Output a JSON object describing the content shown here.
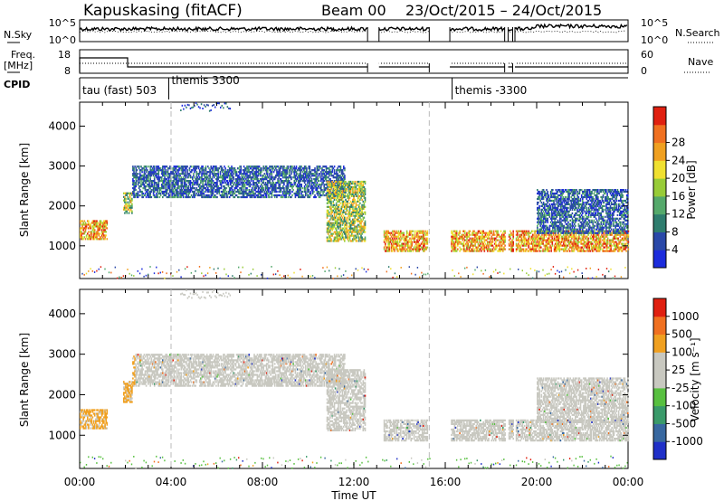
{
  "header": {
    "station": "Kapuskasing (fitACF)",
    "beam": "Beam 00",
    "date_range": "23/Oct/2015 – 24/Oct/2015"
  },
  "panels": {
    "noise": {
      "left_label": "N.Sky",
      "right_label": "N.Search",
      "left_ticks": [
        "10^5",
        "10^0"
      ],
      "right_ticks": [
        "10^5",
        "10^0"
      ]
    },
    "freq": {
      "left_label_1": "Freq.",
      "left_label_2": "[MHz]",
      "right_label": "Nave",
      "left_ticks": [
        "18",
        "8"
      ],
      "right_ticks": [
        "60",
        "0"
      ]
    },
    "cpid": {
      "label": "CPID",
      "segments": [
        {
          "label": "tau (fast) 503",
          "start_h": 0.0
        },
        {
          "label": "themis 3300",
          "start_h": 3.9
        },
        {
          "label": "themis -3300",
          "start_h": 16.3
        }
      ]
    }
  },
  "chart_data": [
    {
      "type": "heatmap",
      "name": "power",
      "ylabel": "Slant Range [km]",
      "xlabel": "Time UT",
      "x_range_hours": [
        0,
        24
      ],
      "xticks": [
        "00:00",
        "04:00",
        "08:00",
        "12:00",
        "16:00",
        "20:00",
        "00:00"
      ],
      "ylim": [
        180,
        4600
      ],
      "yticks": [
        1000,
        2000,
        3000,
        4000
      ],
      "colorbar": {
        "label": "Power [dB]",
        "ticks": [
          "4",
          "8",
          "12",
          "16",
          "20",
          "24",
          "28"
        ],
        "colors": [
          "#1c2cdc",
          "#2a48a8",
          "#2f7d6e",
          "#55a96b",
          "#98cc38",
          "#f0e030",
          "#f0a020",
          "#f07020",
          "#e02010"
        ]
      },
      "features": [
        {
          "from_h": 0.0,
          "to_h": 1.2,
          "range_km": [
            1150,
            1600
          ],
          "level": "high"
        },
        {
          "from_h": 1.9,
          "to_h": 2.3,
          "range_km": [
            1800,
            2300
          ],
          "level": "mid"
        },
        {
          "from_h": 2.3,
          "to_h": 11.6,
          "range_km": [
            2200,
            3000
          ],
          "level": "low"
        },
        {
          "from_h": 10.8,
          "to_h": 12.5,
          "range_km": [
            1100,
            2600
          ],
          "level": "mid"
        },
        {
          "from_h": 13.3,
          "to_h": 15.2,
          "range_km": [
            850,
            1350
          ],
          "level": "high"
        },
        {
          "from_h": 16.2,
          "to_h": 24.0,
          "range_km": [
            850,
            1350
          ],
          "level": "high"
        },
        {
          "from_h": 20.0,
          "to_h": 24.0,
          "range_km": [
            1300,
            2400
          ],
          "level": "low"
        }
      ]
    },
    {
      "type": "heatmap",
      "name": "velocity",
      "ylabel": "Slant Range [km]",
      "xlabel": "Time UT",
      "x_range_hours": [
        0,
        24
      ],
      "xticks": [
        "00:00",
        "04:00",
        "08:00",
        "12:00",
        "16:00",
        "20:00",
        "00:00"
      ],
      "ylim": [
        180,
        4600
      ],
      "yticks": [
        1000,
        2000,
        3000,
        4000
      ],
      "colorbar": {
        "label": "Velocity [m s⁻¹]",
        "ticks": [
          "1000",
          "500",
          "100",
          "25",
          "-25",
          "-100",
          "-500",
          "-1000"
        ],
        "colors": [
          "#2030c8",
          "#3868a0",
          "#3a9a6a",
          "#58c040",
          "#c8c8c0",
          "#c8c8c0",
          "#f0a020",
          "#f07020",
          "#e02010"
        ]
      }
    }
  ],
  "xlabel": "Time UT"
}
